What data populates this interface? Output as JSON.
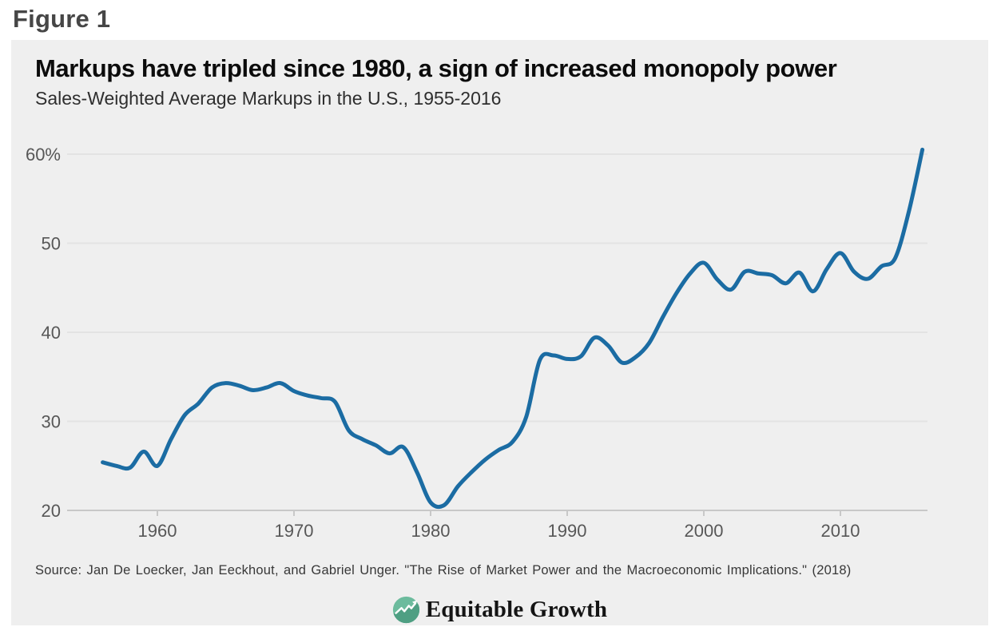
{
  "figure_label": "Figure 1",
  "card": {
    "title": "Markups have tripled since 1980, a sign of increased monopoly power",
    "subtitle": "Sales-Weighted Average Markups in the U.S., 1955-2016",
    "source": "Source: Jan De Loecker, Jan Eeckhout, and Gabriel Unger. \"The Rise of Market Power and the Macroeconomic Implications.\" (2018)",
    "logo_text": "Equitable Growth"
  },
  "colors": {
    "card_background": "#efefef",
    "line": "#1b6ca3",
    "grid": "#e3e3e3",
    "axis_baseline": "#c8c8c8",
    "axis_label": "#575757",
    "logo_green_light": "#6cbb9d",
    "logo_green_dark": "#4f9f83"
  },
  "chart_data": {
    "type": "line",
    "title": "Markups have tripled since 1980, a sign of increased monopoly power",
    "subtitle": "Sales-Weighted Average Markups in the U.S., 1955-2016",
    "series_name": "Sales-weighted average markup (%)",
    "xlabel": "",
    "ylabel": "",
    "legend": "none",
    "grid": "horizontal",
    "xlim": [
      1953.5,
      2017
    ],
    "ylim": [
      20,
      62
    ],
    "x_ticks": [
      1960,
      1970,
      1980,
      1990,
      2000,
      2010
    ],
    "y_ticks": [
      20,
      30,
      40,
      50,
      60
    ],
    "y_tick_labels": [
      "20",
      "30",
      "40",
      "50",
      "60%"
    ],
    "x": [
      1956,
      1957,
      1958,
      1959,
      1960,
      1961,
      1962,
      1963,
      1964,
      1965,
      1966,
      1967,
      1968,
      1969,
      1970,
      1971,
      1972,
      1973,
      1974,
      1975,
      1976,
      1977,
      1978,
      1979,
      1980,
      1981,
      1982,
      1983,
      1984,
      1985,
      1986,
      1987,
      1988,
      1989,
      1990,
      1991,
      1992,
      1993,
      1994,
      1995,
      1996,
      1997,
      1998,
      1999,
      2000,
      2001,
      2002,
      2003,
      2004,
      2005,
      2006,
      2007,
      2008,
      2009,
      2010,
      2011,
      2012,
      2013,
      2014,
      2015,
      2016
    ],
    "values": [
      25.4,
      25.0,
      24.8,
      26.6,
      25.0,
      28.0,
      30.7,
      32.0,
      33.8,
      34.3,
      34.0,
      33.5,
      33.8,
      34.3,
      33.4,
      32.9,
      32.6,
      32.2,
      29.0,
      28.0,
      27.3,
      26.4,
      27.1,
      24.3,
      20.9,
      20.6,
      22.7,
      24.3,
      25.7,
      26.8,
      27.7,
      30.5,
      36.9,
      37.4,
      37.0,
      37.3,
      39.4,
      38.5,
      36.6,
      37.2,
      38.8,
      41.7,
      44.4,
      46.6,
      47.8,
      45.9,
      44.8,
      46.8,
      46.6,
      46.4,
      45.5,
      46.7,
      44.6,
      47.1,
      48.9,
      46.8,
      46.0,
      47.4,
      48.3,
      53.5,
      60.5
    ]
  }
}
